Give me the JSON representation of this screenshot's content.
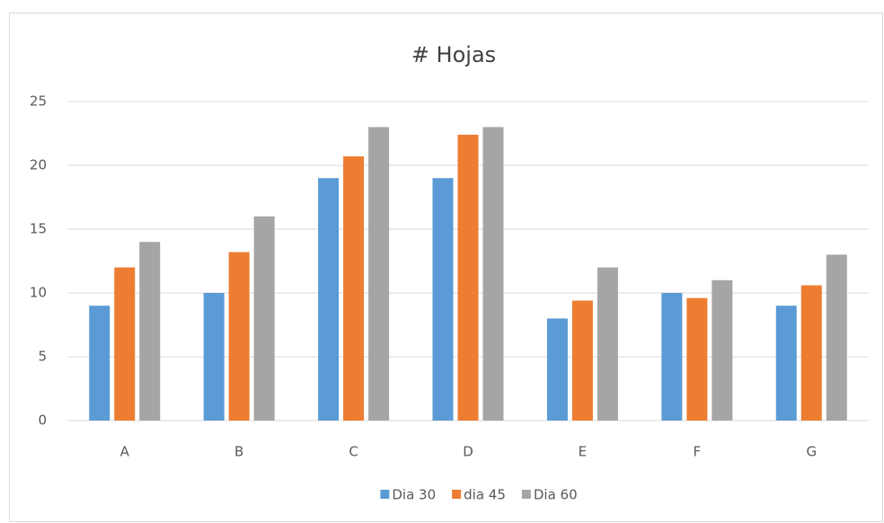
{
  "chart_data": {
    "type": "bar",
    "title": "# Hojas",
    "categories": [
      "A",
      "B",
      "C",
      "D",
      "E",
      "F",
      "G"
    ],
    "series": [
      {
        "name": "Dia 30",
        "color": "#5b9bd5",
        "values": [
          9,
          10,
          19,
          19,
          8,
          10,
          9
        ]
      },
      {
        "name": "dia 45",
        "color": "#ed7d31",
        "values": [
          12,
          13.2,
          20.7,
          22.4,
          9.4,
          9.6,
          10.6
        ]
      },
      {
        "name": "Dia 60",
        "color": "#a5a5a5",
        "values": [
          14,
          16,
          23,
          23,
          12,
          11,
          13
        ]
      }
    ],
    "ylim": [
      0,
      25
    ],
    "yticks": [
      0,
      5,
      10,
      15,
      20,
      25
    ],
    "grid": true,
    "legend": "bottom"
  }
}
